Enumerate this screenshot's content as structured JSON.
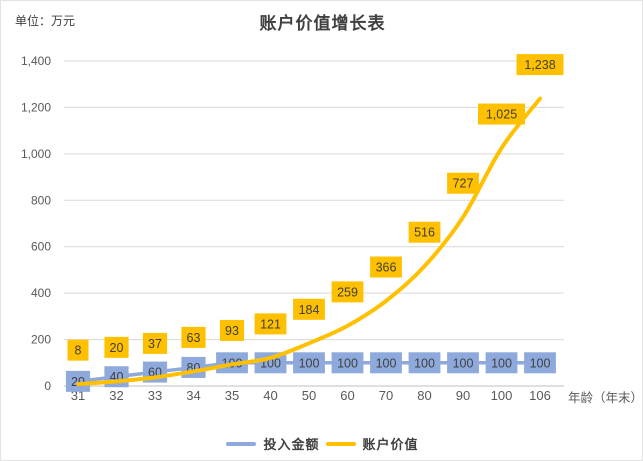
{
  "chart": {
    "title": "账户价值增长表",
    "unit_label": "单位：万元",
    "x_axis_title": "年龄（年末）",
    "colors": {
      "invested_series": "#8EA9DB",
      "account_series": "#FFC000",
      "gridline": "#D9D9D9",
      "axis_line": "#BFBFBF",
      "tick_text": "#595959",
      "data_label_text": "#404040",
      "title_text": "#404040"
    }
  },
  "chart_data": {
    "type": "line",
    "title": "账户价值增长表",
    "xlabel": "年龄（年末）",
    "ylabel": "单位：万元",
    "categories": [
      "31",
      "32",
      "33",
      "34",
      "35",
      "40",
      "50",
      "60",
      "70",
      "80",
      "90",
      "100",
      "106"
    ],
    "series": [
      {
        "name": "投入金额",
        "color": "#8EA9DB",
        "smooth": false,
        "label_position": "center",
        "values": [
          20,
          40,
          60,
          80,
          100,
          100,
          100,
          100,
          100,
          100,
          100,
          100,
          100
        ],
        "value_labels": [
          "20",
          "40",
          "60",
          "80",
          "100",
          "100",
          "100",
          "100",
          "100",
          "100",
          "100",
          "100",
          "100"
        ]
      },
      {
        "name": "账户价值",
        "color": "#FFC000",
        "smooth": true,
        "label_position": "above",
        "values": [
          8,
          20,
          37,
          63,
          93,
          121,
          184,
          259,
          366,
          516,
          727,
          1025,
          1238
        ],
        "value_labels": [
          "8",
          "20",
          "37",
          "63",
          "93",
          "121",
          "184",
          "259",
          "366",
          "516",
          "727",
          "1,025",
          "1,238"
        ]
      }
    ],
    "ylim": [
      0,
      1400
    ],
    "ytick_step": 200,
    "ytick_labels": [
      "0",
      "200",
      "400",
      "600",
      "800",
      "1,000",
      "1,200",
      "1,400"
    ],
    "grid": true,
    "legend_position": "bottom"
  }
}
